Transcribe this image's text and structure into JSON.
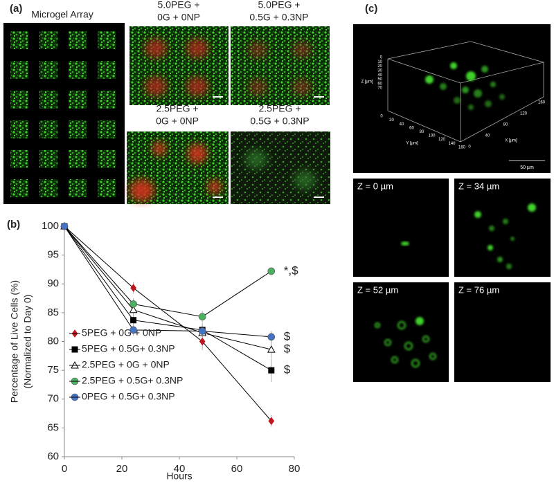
{
  "panel_a": {
    "label": "(a)",
    "array_title": "Microgel Array",
    "images": [
      {
        "lines": [
          "5.0PEG +",
          "0G + 0NP"
        ]
      },
      {
        "lines": [
          "5.0PEG +",
          "0.5G + 0.3NP"
        ]
      },
      {
        "lines": [
          "2.5PEG +",
          "0G + 0NP"
        ]
      },
      {
        "lines": [
          "2.5PEG +",
          "0.5G + 0.3NP"
        ]
      }
    ]
  },
  "chart_data": {
    "type": "line",
    "label": "(b)",
    "x_label": "Hours",
    "y_label": [
      "Percentage of Live Cells (%)",
      "(Normalized to Day 0)"
    ],
    "x": [
      0,
      24,
      48,
      72
    ],
    "xlim": [
      0,
      80
    ],
    "xticks": [
      0,
      20,
      40,
      60,
      80
    ],
    "ylim": [
      60,
      100
    ],
    "yticks": [
      60,
      65,
      70,
      75,
      80,
      85,
      90,
      95,
      100
    ],
    "line_color": "#000000",
    "series": [
      {
        "name": "5PEG + 0G + 0NP",
        "color": "#c0171e",
        "marker": "diamond",
        "values": [
          100,
          89.3,
          80,
          66.2
        ],
        "errors": [
          0,
          1,
          1.5,
          1
        ]
      },
      {
        "name": "5PEG + 0.5G+ 0.3NP",
        "color": "#000000",
        "marker": "square",
        "values": [
          100,
          83.7,
          82,
          75
        ],
        "errors": [
          0,
          1,
          1.2,
          2
        ],
        "annotation": "$"
      },
      {
        "name": "2.5PEG + 0G + 0NP",
        "color": "#ffffff",
        "marker": "triangle",
        "values": [
          100,
          85.5,
          81.5,
          78.6
        ],
        "errors": [
          0,
          1,
          1,
          1.5
        ],
        "annotation": "$"
      },
      {
        "name": "2.5PEG + 0.5G+ 0.3NP",
        "color": "#4bb060",
        "marker": "circle",
        "values": [
          100,
          86.5,
          84.3,
          92.2
        ],
        "errors": [
          0,
          1,
          1,
          0.5
        ],
        "annotation": "*,$"
      },
      {
        "name": "0PEG + 0.5G+ 0.3NP",
        "color": "#4472c4",
        "marker": "circle",
        "values": [
          100,
          82,
          81.8,
          80.8
        ],
        "errors": [
          0,
          1,
          1,
          1
        ],
        "annotation": "$"
      }
    ]
  },
  "panel_c": {
    "label": "(c)",
    "z_axis": "Z [µm]",
    "y_axis": "Y [µm]",
    "x_axis": "X [µm]",
    "z_ticks": [
      0,
      10,
      20,
      30,
      40,
      50,
      60,
      70
    ],
    "y_ticks": [
      0,
      20,
      40,
      60,
      80,
      100,
      120,
      140,
      160
    ],
    "x_ticks": [
      0,
      40,
      80,
      120,
      160
    ],
    "scale_bar": "50 µm",
    "slices": [
      "Z = 0 µm",
      "Z = 34 µm",
      "Z = 52 µm",
      "Z = 76 µm"
    ]
  }
}
